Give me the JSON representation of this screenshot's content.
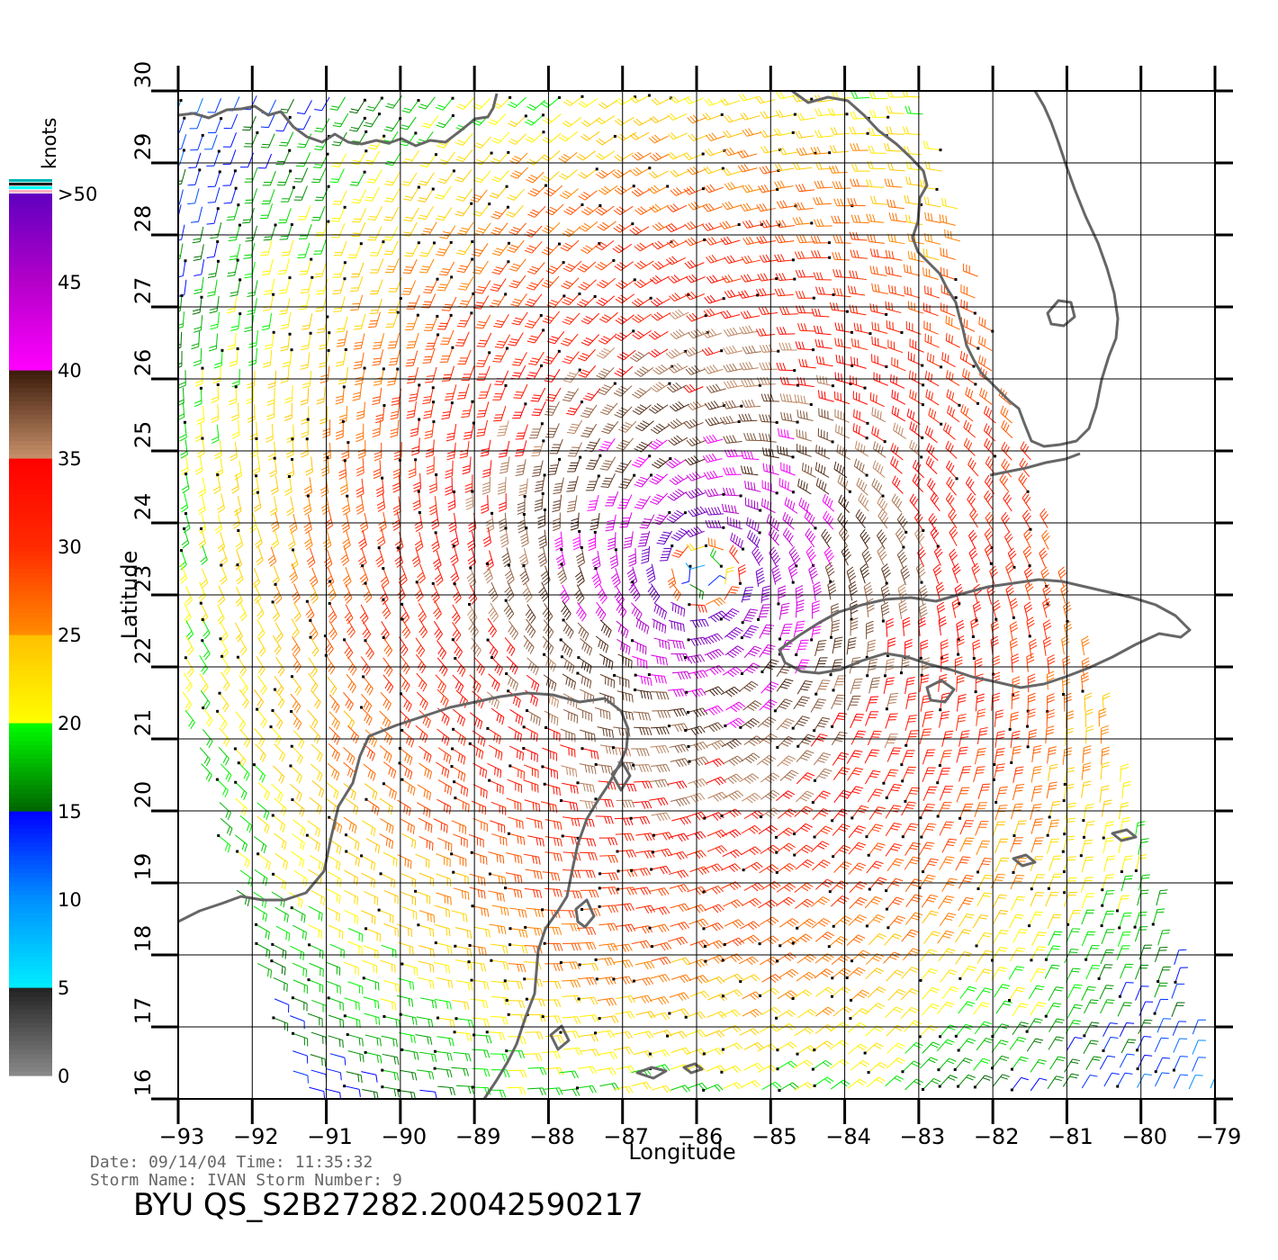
{
  "map": {
    "lon_range": [
      -93,
      -79
    ],
    "lat_range": [
      16,
      30
    ],
    "lon_ticks": [
      -93,
      -92,
      -91,
      -90,
      -89,
      -88,
      -87,
      -86,
      -85,
      -84,
      -83,
      -82,
      -81,
      -80,
      -79
    ],
    "lat_ticks": [
      16,
      17,
      18,
      19,
      20,
      21,
      22,
      23,
      24,
      25,
      26,
      27,
      28,
      29,
      30
    ],
    "lon_tick_labels": [
      "−93",
      "−92",
      "−91",
      "−90",
      "−89",
      "−88",
      "−87",
      "−86",
      "−85",
      "−84",
      "−83",
      "−82",
      "−81",
      "−80",
      "−79"
    ],
    "lat_tick_labels": [
      "16",
      "17",
      "18",
      "19",
      "20",
      "21",
      "22",
      "23",
      "24",
      "25",
      "26",
      "27",
      "28",
      "29",
      "30"
    ],
    "x_label": "Longitude",
    "y_label": "Latitude",
    "grid": true,
    "land_outline_color": "#666666"
  },
  "color_scale": {
    "unit": "knots",
    "labels": [
      "0",
      "5",
      "10",
      "15",
      "20",
      "25",
      "30",
      "35",
      "40",
      "45",
      ">50"
    ],
    "stops": [
      {
        "knots": 0,
        "color": "#8a8a8a"
      },
      {
        "knots": 5,
        "color": "#222222"
      },
      {
        "knots": 5.01,
        "color": "#00eeff"
      },
      {
        "knots": 10,
        "color": "#0090ff"
      },
      {
        "knots": 15,
        "color": "#0000ff"
      },
      {
        "knots": 15.01,
        "color": "#006400"
      },
      {
        "knots": 20,
        "color": "#00ff00"
      },
      {
        "knots": 20.01,
        "color": "#ffff00"
      },
      {
        "knots": 25,
        "color": "#ffc000"
      },
      {
        "knots": 25.01,
        "color": "#ff8c00"
      },
      {
        "knots": 30,
        "color": "#ff2a00"
      },
      {
        "knots": 35,
        "color": "#ff0000"
      },
      {
        "knots": 35.01,
        "color": "#c8906a"
      },
      {
        "knots": 40,
        "color": "#3a1a0a"
      },
      {
        "knots": 40.01,
        "color": "#ff00ff"
      },
      {
        "knots": 45,
        "color": "#b400c8"
      },
      {
        "knots": 50,
        "color": "#6000c0"
      }
    ],
    "top_stripes": [
      "#00b4b4",
      "#1a1a1a",
      "#00ffff",
      "#ffb0c0"
    ]
  },
  "storm": {
    "center_lon": -85.9,
    "center_lat": 23.3
  },
  "footer": {
    "line1": "Date: 09/14/04   Time: 11:35:32",
    "line2": "Storm Name: IVAN   Storm Number: 9",
    "title": "BYU QS_S2B27282.20042590217"
  },
  "colors": {
    "grid": "#000000",
    "land": "#666666",
    "marker": "#000000"
  }
}
